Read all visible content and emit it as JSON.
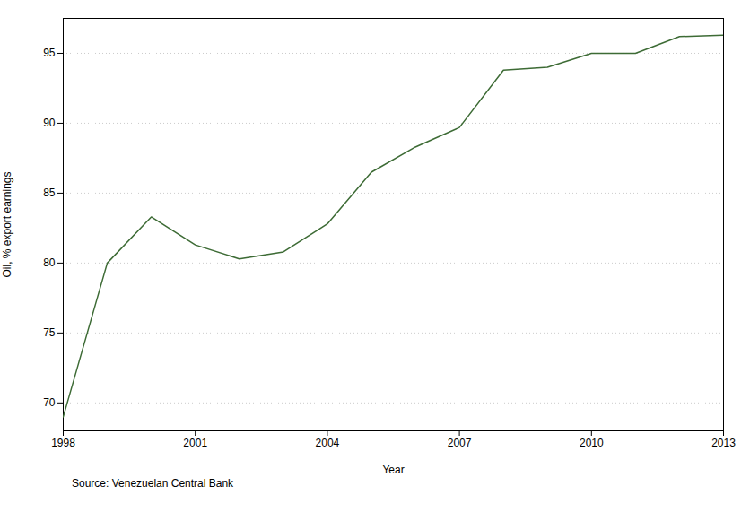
{
  "chart_data": {
    "type": "line",
    "x": [
      1998,
      1999,
      2000,
      2001,
      2002,
      2003,
      2004,
      2005,
      2006,
      2007,
      2008,
      2009,
      2010,
      2011,
      2012,
      2013
    ],
    "values": [
      69.0,
      80.0,
      83.3,
      81.3,
      80.3,
      80.8,
      82.8,
      86.5,
      88.3,
      89.7,
      93.8,
      94.0,
      95.0,
      95.0,
      96.2,
      96.3
    ],
    "color": "#3d6b35",
    "xlabel": "Year",
    "ylabel": "Oil, % export earnings",
    "xlim": [
      1998,
      2013
    ],
    "ylim": [
      68.0,
      97.5
    ],
    "xticks": [
      1998,
      2001,
      2004,
      2007,
      2010,
      2013
    ],
    "yticks": [
      70,
      75,
      80,
      85,
      90,
      95
    ],
    "grid": true,
    "annotations": [
      "Source: Venezuelan Central Bank"
    ]
  }
}
